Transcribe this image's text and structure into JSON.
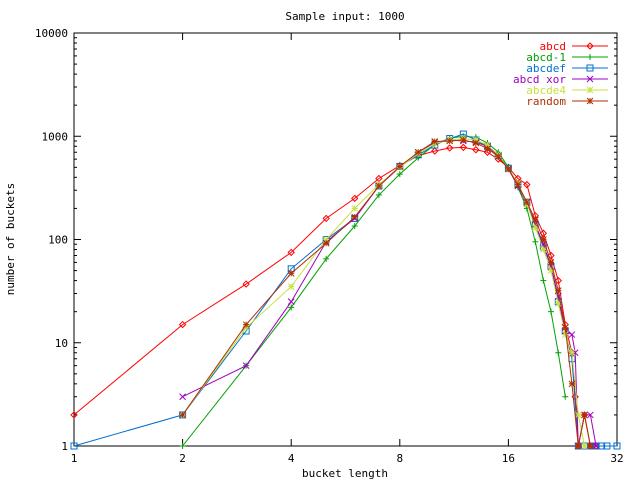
{
  "chart_data": {
    "type": "line",
    "title": "Sample input: 1000",
    "xlabel": "bucket length",
    "ylabel": "number of buckets",
    "x_scale": "log2",
    "y_scale": "log10",
    "xlim": [
      1,
      32
    ],
    "ylim": [
      1,
      10000
    ],
    "x_ticks": [
      "1",
      "2",
      "4",
      "8",
      "16",
      "32"
    ],
    "y_ticks": [
      "1",
      "10",
      "100",
      "1000",
      "10000"
    ],
    "grid": false,
    "legend_position": "top-right",
    "series": [
      {
        "name": "abcd",
        "color": "#ff0000",
        "marker": "diamond",
        "points": [
          [
            1,
            2
          ],
          [
            2,
            15
          ],
          [
            3,
            37
          ],
          [
            4,
            75
          ],
          [
            5,
            160
          ],
          [
            6,
            250
          ],
          [
            7,
            390
          ],
          [
            8,
            520
          ],
          [
            9,
            650
          ],
          [
            10,
            720
          ],
          [
            11,
            770
          ],
          [
            12,
            780
          ],
          [
            13,
            740
          ],
          [
            14,
            700
          ],
          [
            15,
            600
          ],
          [
            16,
            500
          ],
          [
            17,
            390
          ],
          [
            18,
            340
          ],
          [
            19,
            170
          ],
          [
            20,
            115
          ],
          [
            21,
            70
          ],
          [
            22,
            40
          ],
          [
            23,
            15
          ],
          [
            24,
            8
          ],
          [
            24.5,
            3
          ],
          [
            25,
            1
          ],
          [
            26,
            2
          ],
          [
            27,
            1
          ],
          [
            28,
            1
          ]
        ]
      },
      {
        "name": "abcd-1",
        "color": "#00a000",
        "marker": "plus",
        "points": [
          [
            2,
            1
          ],
          [
            3,
            6
          ],
          [
            4,
            22
          ],
          [
            5,
            65
          ],
          [
            6,
            135
          ],
          [
            7,
            270
          ],
          [
            8,
            430
          ],
          [
            9,
            620
          ],
          [
            10,
            830
          ],
          [
            11,
            960
          ],
          [
            12,
            1000
          ],
          [
            13,
            980
          ],
          [
            14,
            860
          ],
          [
            15,
            700
          ],
          [
            16,
            500
          ],
          [
            17,
            320
          ],
          [
            18,
            200
          ],
          [
            19,
            95
          ],
          [
            20,
            40
          ],
          [
            21,
            20
          ],
          [
            22,
            8
          ],
          [
            23,
            3
          ]
        ]
      },
      {
        "name": "abcdef",
        "color": "#0070d0",
        "marker": "square",
        "points": [
          [
            1,
            1
          ],
          [
            2,
            2
          ],
          [
            3,
            13
          ],
          [
            4,
            52
          ],
          [
            5,
            100
          ],
          [
            6,
            160
          ],
          [
            7,
            330
          ],
          [
            8,
            510
          ],
          [
            9,
            660
          ],
          [
            10,
            820
          ],
          [
            11,
            950
          ],
          [
            12,
            1050
          ],
          [
            13,
            920
          ],
          [
            14,
            800
          ],
          [
            15,
            650
          ],
          [
            16,
            490
          ],
          [
            17,
            340
          ],
          [
            18,
            230
          ],
          [
            19,
            140
          ],
          [
            20,
            85
          ],
          [
            21,
            55
          ],
          [
            22,
            25
          ],
          [
            23,
            13
          ],
          [
            24,
            7
          ],
          [
            25,
            1
          ],
          [
            26,
            1
          ],
          [
            27,
            1
          ],
          [
            28,
            1
          ],
          [
            29,
            1
          ],
          [
            30,
            1
          ],
          [
            32,
            1
          ]
        ]
      },
      {
        "name": "abcd xor",
        "color": "#a000c0",
        "marker": "cross",
        "points": [
          [
            2,
            3
          ],
          [
            3,
            6
          ],
          [
            4,
            25
          ],
          [
            5,
            95
          ],
          [
            6,
            160
          ],
          [
            7,
            330
          ],
          [
            8,
            500
          ],
          [
            9,
            700
          ],
          [
            10,
            870
          ],
          [
            11,
            920
          ],
          [
            12,
            900
          ],
          [
            13,
            880
          ],
          [
            14,
            800
          ],
          [
            15,
            640
          ],
          [
            16,
            480
          ],
          [
            17,
            330
          ],
          [
            18,
            220
          ],
          [
            19,
            140
          ],
          [
            20,
            90
          ],
          [
            21,
            55
          ],
          [
            22,
            28
          ],
          [
            23,
            13
          ],
          [
            24,
            12
          ],
          [
            24.5,
            8
          ],
          [
            25,
            1
          ],
          [
            26,
            2
          ],
          [
            27,
            2
          ],
          [
            28,
            1
          ]
        ]
      },
      {
        "name": "abcde4",
        "color": "#c8e040",
        "marker": "star",
        "points": [
          [
            2,
            2
          ],
          [
            3,
            14
          ],
          [
            4,
            35
          ],
          [
            5,
            100
          ],
          [
            6,
            200
          ],
          [
            7,
            340
          ],
          [
            8,
            500
          ],
          [
            9,
            680
          ],
          [
            10,
            850
          ],
          [
            11,
            920
          ],
          [
            12,
            950
          ],
          [
            13,
            920
          ],
          [
            14,
            820
          ],
          [
            15,
            660
          ],
          [
            16,
            480
          ],
          [
            17,
            350
          ],
          [
            18,
            220
          ],
          [
            19,
            130
          ],
          [
            20,
            80
          ],
          [
            21,
            50
          ],
          [
            22,
            24
          ],
          [
            23,
            12
          ],
          [
            24,
            8
          ],
          [
            25,
            2
          ],
          [
            26,
            1
          ]
        ]
      },
      {
        "name": "random",
        "color": "#b03000",
        "marker": "asterisk",
        "points": [
          [
            2,
            2
          ],
          [
            3,
            15
          ],
          [
            4,
            47
          ],
          [
            5,
            92
          ],
          [
            6,
            165
          ],
          [
            7,
            330
          ],
          [
            8,
            510
          ],
          [
            9,
            700
          ],
          [
            10,
            890
          ],
          [
            11,
            900
          ],
          [
            12,
            920
          ],
          [
            13,
            860
          ],
          [
            14,
            760
          ],
          [
            15,
            640
          ],
          [
            16,
            480
          ],
          [
            17,
            340
          ],
          [
            18,
            230
          ],
          [
            19,
            155
          ],
          [
            20,
            100
          ],
          [
            21,
            60
          ],
          [
            22,
            32
          ],
          [
            23,
            14
          ],
          [
            24,
            4
          ],
          [
            25,
            1
          ],
          [
            26,
            2
          ],
          [
            27,
            1
          ]
        ]
      }
    ]
  }
}
